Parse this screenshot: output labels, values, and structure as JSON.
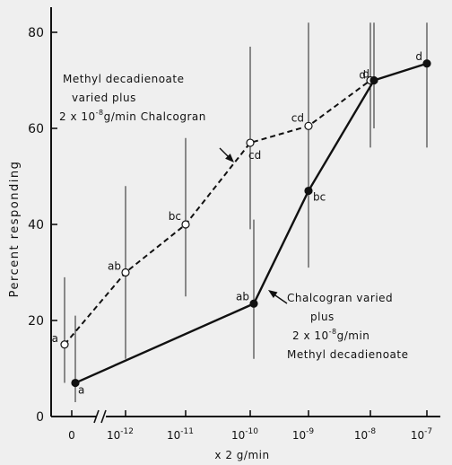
{
  "chart_data": {
    "type": "line",
    "xlabel": "x 2 g/min",
    "ylabel": "Percent responding",
    "ylim": [
      0,
      85
    ],
    "yticks": [
      0,
      20,
      40,
      60,
      80
    ],
    "x_tick_labels": [
      {
        "base": "0",
        "exp": ""
      },
      {
        "base": "10",
        "exp": "-12"
      },
      {
        "base": "10",
        "exp": "-11"
      },
      {
        "base": "10",
        "exp": "-10"
      },
      {
        "base": "10",
        "exp": "-9"
      },
      {
        "base": "10",
        "exp": "-8"
      },
      {
        "base": "10",
        "exp": "-7"
      }
    ],
    "axis_break": "x between 0 and 10^-12",
    "series": [
      {
        "style": "dashed, open circles",
        "points": [
          {
            "x": "0",
            "y": 15,
            "err": [
              7,
              29
            ],
            "label": "a"
          },
          {
            "x": "1e-12",
            "y": 30,
            "err": [
              12,
              48
            ],
            "label": "ab"
          },
          {
            "x": "1e-11",
            "y": 40,
            "err": [
              25,
              58
            ],
            "label": "bc"
          },
          {
            "x": "1e-10",
            "y": 57,
            "err": [
              39,
              77
            ],
            "label": "cd"
          },
          {
            "x": "1e-9",
            "y": 60.5,
            "err": [
              36,
              82
            ],
            "label": "cd"
          },
          {
            "x": "1e-8",
            "y": 70,
            "err": [
              56,
              82
            ],
            "label": "d"
          }
        ]
      },
      {
        "style": "solid, filled circles",
        "points": [
          {
            "x": "0",
            "y": 7,
            "err": [
              3,
              21
            ],
            "label": "a"
          },
          {
            "x": "1e-10",
            "y": 23.5,
            "err": [
              12,
              41
            ],
            "label": "ab"
          },
          {
            "x": "1e-9",
            "y": 47,
            "err": [
              31,
              64
            ],
            "label": "bc"
          },
          {
            "x": "1e-8",
            "y": 70,
            "err": [
              60,
              82
            ],
            "label": "d"
          },
          {
            "x": "1e-7",
            "y": 73.5,
            "err": [
              56,
              82
            ],
            "label": "d"
          }
        ]
      }
    ],
    "annotations": {
      "dashed_series_text": [
        "Methyl decadienoate",
        "varied plus",
        {
          "a": "2 x 10",
          "sup": "-8",
          "b": "g/min  Chalcogran"
        }
      ],
      "solid_series_text": [
        "Chalcogran varied",
        "plus",
        {
          "a": "2 x 10",
          "sup": "-8",
          "b": "g/min"
        },
        "Methyl decadienoate"
      ]
    }
  }
}
